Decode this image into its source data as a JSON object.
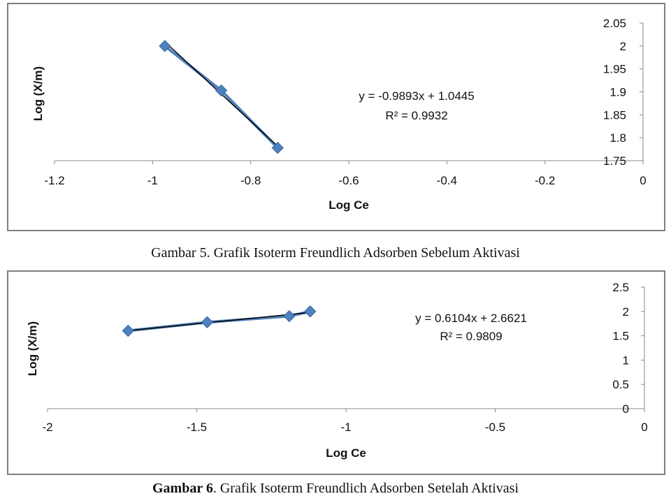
{
  "chart_data": [
    {
      "type": "scatter",
      "xlabel": "Log Ce",
      "ylabel": "Log (X/m)",
      "xlim": [
        -1.2,
        0
      ],
      "ylim": [
        1.75,
        2.05
      ],
      "xticks": [
        "-1.2",
        "-1",
        "-0.8",
        "-0.6",
        "-0.4",
        "-0.2",
        "0"
      ],
      "yticks": [
        "1.75",
        "1.8",
        "1.85",
        "1.9",
        "1.95",
        "2",
        "2.05"
      ],
      "series": [
        {
          "x": [
            -0.975,
            -0.86,
            -0.745
          ],
          "y": [
            2.0,
            1.903,
            1.778
          ]
        }
      ],
      "trendline": {
        "slope": -0.9893,
        "intercept": 1.0445,
        "x_range": [
          -0.975,
          -0.745
        ]
      },
      "annotations": [
        "y = -0.9893x + 1.0445",
        "R² = 0.9932"
      ],
      "grid": false,
      "legend": "none",
      "colors": {
        "marker": "#4f81bd",
        "trendline": "#000000"
      }
    },
    {
      "type": "scatter",
      "xlabel": "Log Ce",
      "ylabel": "Log (X/m)",
      "xlim": [
        -2,
        0
      ],
      "ylim": [
        0,
        2.5
      ],
      "xticks": [
        "-2",
        "-1.5",
        "-1",
        "-0.5",
        "0"
      ],
      "yticks": [
        "0",
        "0.5",
        "1",
        "1.5",
        "2",
        "2.5"
      ],
      "series": [
        {
          "x": [
            -1.73,
            -1.465,
            -1.19,
            -1.12
          ],
          "y": [
            1.602,
            1.778,
            1.903,
            2.0
          ]
        }
      ],
      "trendline": {
        "slope": 0.6104,
        "intercept": 2.6621,
        "x_range": [
          -1.73,
          -1.12
        ]
      },
      "annotations": [
        "y = 0.6104x + 2.6621",
        "R² = 0.9809"
      ],
      "grid": false,
      "legend": "none",
      "colors": {
        "marker": "#4f81bd",
        "trendline": "#000000"
      }
    }
  ],
  "captions": [
    {
      "prefix": "",
      "text": "Gambar 5. Grafik Isoterm Freundlich Adsorben Sebelum Aktivasi"
    },
    {
      "prefix": "Gambar 6",
      "text": ". Grafik Isoterm Freundlich Adsorben Setelah Aktivasi"
    }
  ]
}
